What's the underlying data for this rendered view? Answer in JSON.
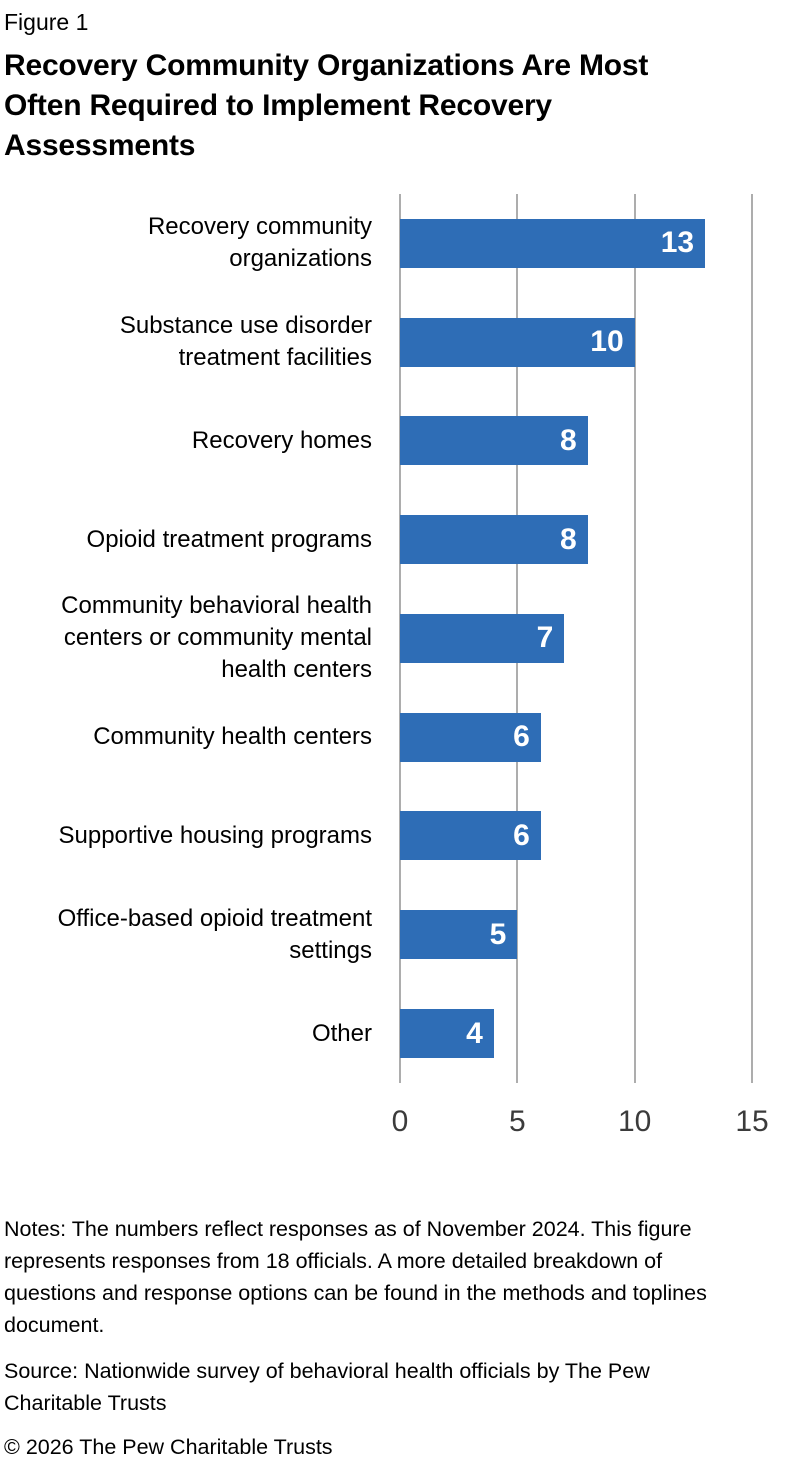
{
  "figure_label": "Figure 1",
  "title": "Recovery Community Organizations Are Most\nOften Required to Implement Recovery\nAssessments",
  "chart_data": {
    "type": "bar",
    "orientation": "horizontal",
    "categories": [
      "Recovery community\norganizations",
      "Substance use disorder\ntreatment facilities",
      "Recovery homes",
      "Opioid treatment programs",
      "Community behavioral health\ncenters or community mental\nhealth centers",
      "Community health centers",
      "Supportive housing programs",
      "Office-based opioid treatment\nsettings",
      "Other"
    ],
    "values": [
      13,
      10,
      8,
      8,
      7,
      6,
      6,
      5,
      4
    ],
    "xticks": [
      0,
      5,
      10,
      15
    ],
    "xlim": [
      0,
      15
    ],
    "xlabel": "",
    "ylabel": "",
    "legend": "none",
    "grid": "vertical-gridlines-only",
    "bar_color": "#2E6DB6",
    "gridline_color": "#ADADAD",
    "value_label_color": "#FFFFFF",
    "tick_label_color": "#3B3B3B",
    "value_labels_position": "inside-end"
  },
  "notes": "Notes: The numbers reflect responses as of November 2024. This figure\nrepresents responses from 18 officials. A more detailed breakdown of\nquestions and response options can be found in the methods and toplines\ndocument.",
  "source": "Source: Nationwide survey of behavioral health officials by The Pew\nCharitable Trusts",
  "copyright": "© 2026 The Pew Charitable Trusts"
}
